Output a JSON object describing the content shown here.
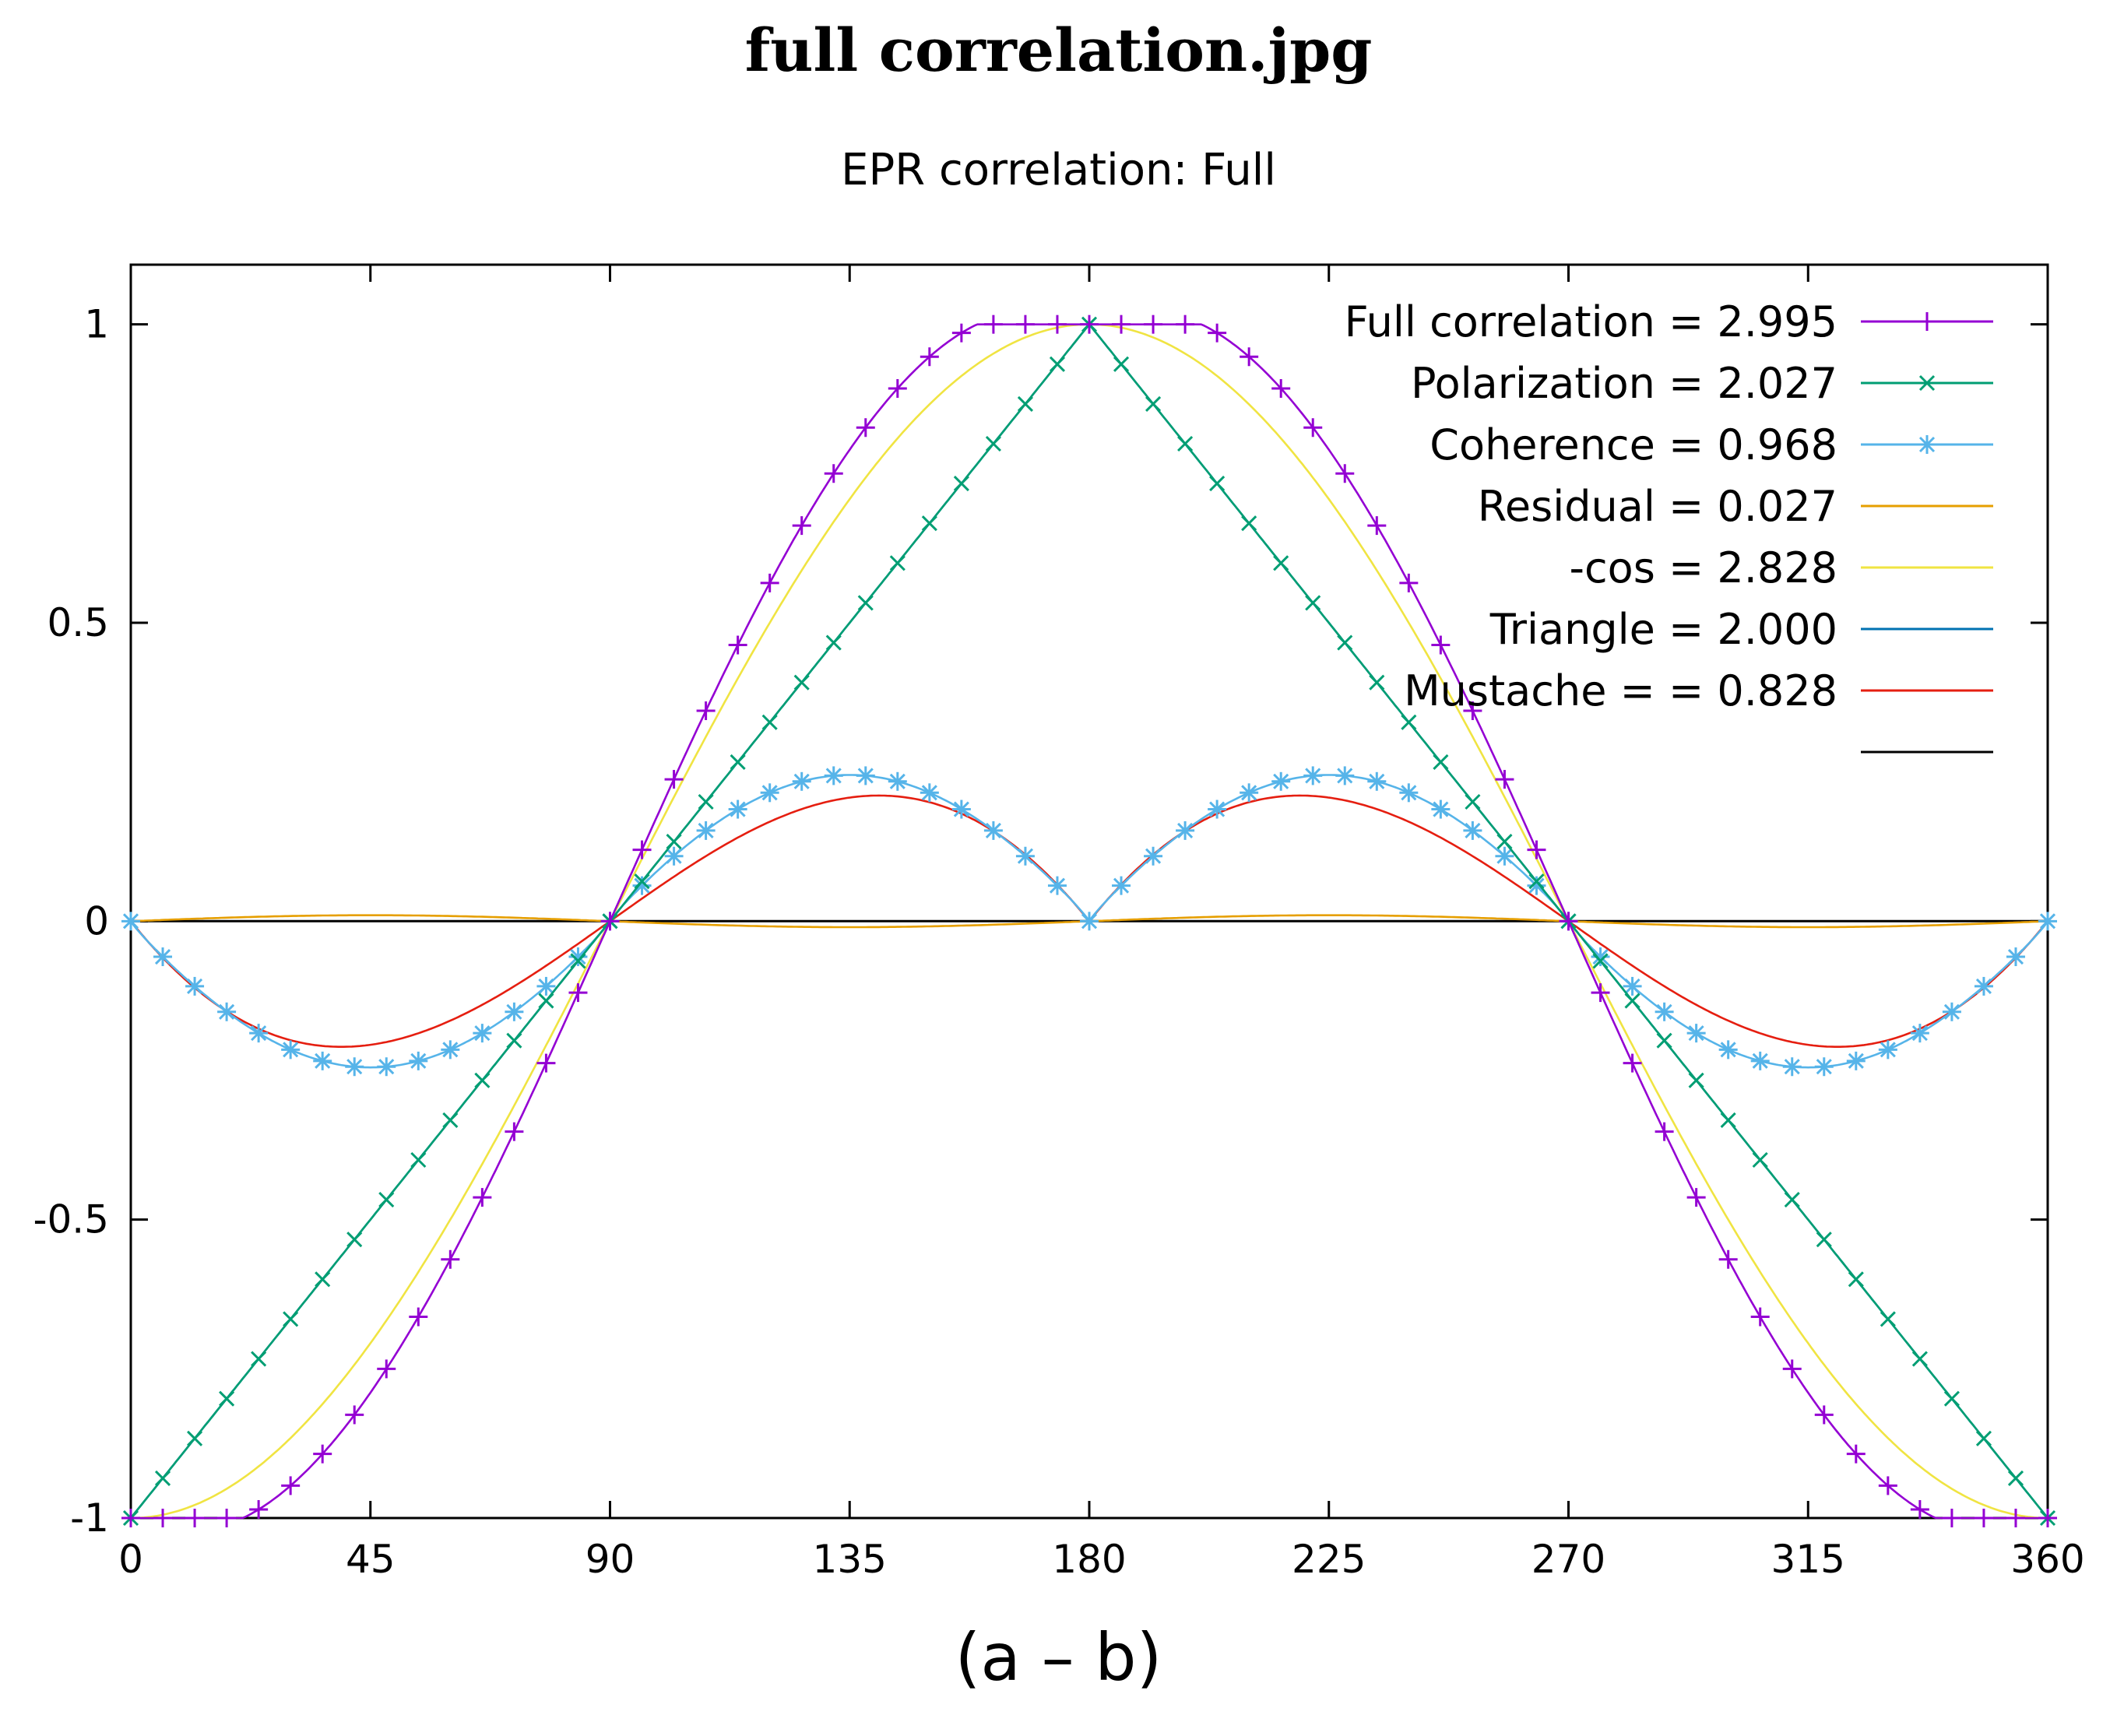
{
  "header": {
    "title": "full correlation.jpg"
  },
  "chart_data": {
    "type": "line",
    "title": "EPR correlation: Full",
    "xlabel": "(a – b)",
    "ylabel": "",
    "xlim": [
      0,
      360
    ],
    "ylim": [
      -1,
      1.1
    ],
    "x_ticks": [
      "0",
      "45",
      "90",
      "135",
      "180",
      "225",
      "270",
      "315",
      "360"
    ],
    "y_ticks": [
      "-1",
      "-0.5",
      "0",
      "0.5",
      "1"
    ],
    "grid": false,
    "legend": "top-right",
    "series": [
      {
        "name": "Full correlation = 2.995",
        "color": "#9400d3",
        "marker": "plus",
        "formula": "full",
        "sample_values": {
          "0": -1,
          "45": -0.76,
          "90": 0,
          "135": 0.76,
          "180": 1,
          "225": 0.76,
          "270": 0,
          "315": -0.76,
          "360": -1
        }
      },
      {
        "name": "Polarization = 2.027",
        "color": "#009e73",
        "marker": "x",
        "formula": "triangle",
        "sample_values": {
          "0": -1,
          "90": 0,
          "180": 1,
          "270": 0,
          "360": -1
        }
      },
      {
        "name": "Coherence = 0.968",
        "color": "#56b4e9",
        "marker": "star",
        "formula": "coherence",
        "sample_values": {
          "0": 0,
          "45": -0.24,
          "90": 0,
          "135": 0.24,
          "180": 0,
          "225": 0.24,
          "270": 0,
          "315": -0.24,
          "360": 0
        }
      },
      {
        "name": "Residual = 0.027",
        "color": "#e69f00",
        "marker": "none",
        "formula": "residual",
        "sample_values": {
          "0": 0,
          "90": 0,
          "180": 0,
          "270": 0,
          "360": 0
        }
      },
      {
        "name": "-cos = 2.828",
        "color": "#f0e442",
        "marker": "none",
        "formula": "negcos",
        "sample_values": {
          "0": -1,
          "90": 0,
          "180": 1,
          "270": 0,
          "360": -1
        }
      },
      {
        "name": "Triangle = 2.000",
        "color": "#0072b2",
        "marker": "none",
        "formula": "triangle",
        "sample_values": {
          "0": -1,
          "90": 0,
          "180": 1,
          "270": 0,
          "360": -1
        }
      },
      {
        "name": "Mustache = = 0.828",
        "color": "#e51e10",
        "marker": "none",
        "formula": "mustache",
        "sample_values": {
          "0": 0,
          "45": -0.21,
          "90": 0,
          "135": 0.21,
          "180": 0,
          "225": 0.21,
          "270": 0,
          "315": -0.21,
          "360": 0
        }
      },
      {
        "name": "",
        "color": "#000000",
        "marker": "none",
        "formula": "zero",
        "sample_values": {
          "0": 0,
          "360": 0
        }
      }
    ]
  }
}
